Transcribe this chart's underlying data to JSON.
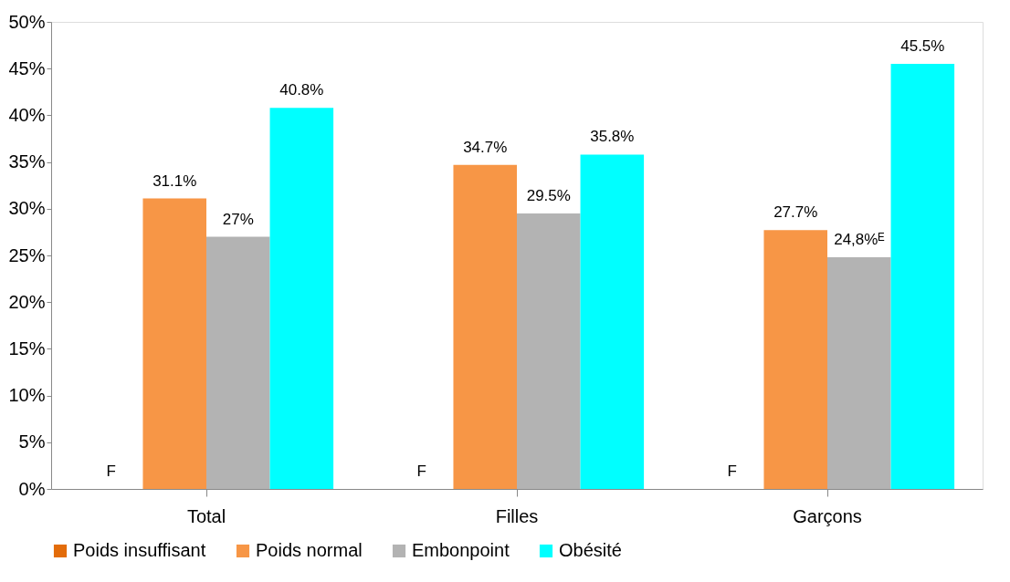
{
  "chart_data": {
    "type": "bar",
    "categories": [
      "Total",
      "Filles",
      "Garçons"
    ],
    "series": [
      {
        "name": "Poids insuffisant",
        "color": "#e36c0a",
        "values": [
          null,
          null,
          null
        ],
        "value_labels": [
          "F",
          "F",
          "F"
        ]
      },
      {
        "name": "Poids normal",
        "color": "#f79646",
        "values": [
          31.1,
          34.7,
          27.7
        ],
        "value_labels": [
          "31.1%",
          "34.7%",
          "27.7%"
        ]
      },
      {
        "name": "Embonpoint",
        "color": "#b3b3b3",
        "values": [
          27,
          29.5,
          24.8
        ],
        "value_labels": [
          "27%",
          "29.5%",
          "24,8%ᴱ"
        ]
      },
      {
        "name": "Obésité",
        "color": "#00ffff",
        "values": [
          40.8,
          35.8,
          45.5
        ],
        "value_labels": [
          "40.8%",
          "35.8%",
          "45.5%"
        ]
      }
    ],
    "ylim": [
      0,
      50
    ],
    "yticks": [
      {
        "value": 0,
        "label": "0%"
      },
      {
        "value": 5,
        "label": "5%"
      },
      {
        "value": 10,
        "label": "10%"
      },
      {
        "value": 15,
        "label": "15%"
      },
      {
        "value": 20,
        "label": "20%"
      },
      {
        "value": 25,
        "label": "25%"
      },
      {
        "value": 30,
        "label": "30%"
      },
      {
        "value": 35,
        "label": "35%"
      },
      {
        "value": 40,
        "label": "40%"
      },
      {
        "value": 45,
        "label": "45%"
      },
      {
        "value": 50,
        "label": "50%"
      }
    ],
    "grid": false,
    "legend": "bottom"
  }
}
